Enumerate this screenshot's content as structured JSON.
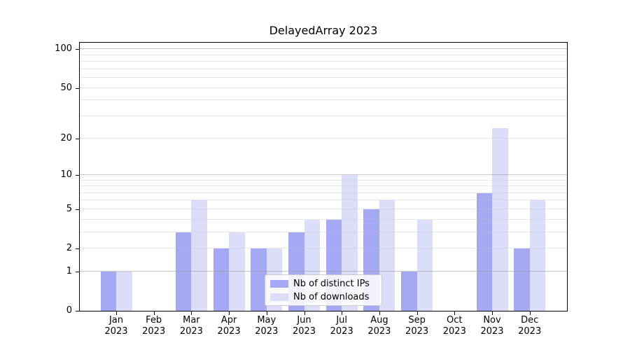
{
  "chart_data": {
    "type": "bar",
    "title": "DelayedArray 2023",
    "year_label": "2023",
    "categories": [
      "Jan",
      "Feb",
      "Mar",
      "Apr",
      "May",
      "Jun",
      "Jul",
      "Aug",
      "Sep",
      "Oct",
      "Nov",
      "Dec"
    ],
    "series": [
      {
        "name": "Nb of distinct IPs",
        "color": "#a5a8f3",
        "values": [
          1,
          0,
          3,
          2,
          2,
          3,
          4,
          5,
          1,
          0,
          7,
          2
        ]
      },
      {
        "name": "Nb of downloads",
        "color": "#dcdef9",
        "values": [
          1,
          0,
          6,
          3,
          2,
          4,
          10,
          6,
          4,
          0,
          24,
          6
        ]
      }
    ],
    "y_axis": {
      "scale": "log1p",
      "ticks": [
        0,
        1,
        2,
        5,
        10,
        20,
        50,
        100
      ],
      "max": 112.5,
      "major_gridlines": [
        1,
        10,
        100
      ],
      "minor_gridlines": [
        2,
        3,
        4,
        5,
        6,
        7,
        8,
        9,
        20,
        30,
        40,
        50,
        60,
        70,
        80,
        90
      ]
    },
    "legend": {
      "position": "lower center",
      "entries": [
        "Nb of distinct IPs",
        "Nb of downloads"
      ]
    },
    "grid": true
  },
  "colors": {
    "background": "#ffffff",
    "axis": "#000000",
    "major_grid": "#c8c8c8",
    "minor_grid": "#ebebee",
    "text": "#000000",
    "legend_border": "#cccccc",
    "bar_dark": "#a5a8f3",
    "bar_light": "#dcdef9"
  }
}
